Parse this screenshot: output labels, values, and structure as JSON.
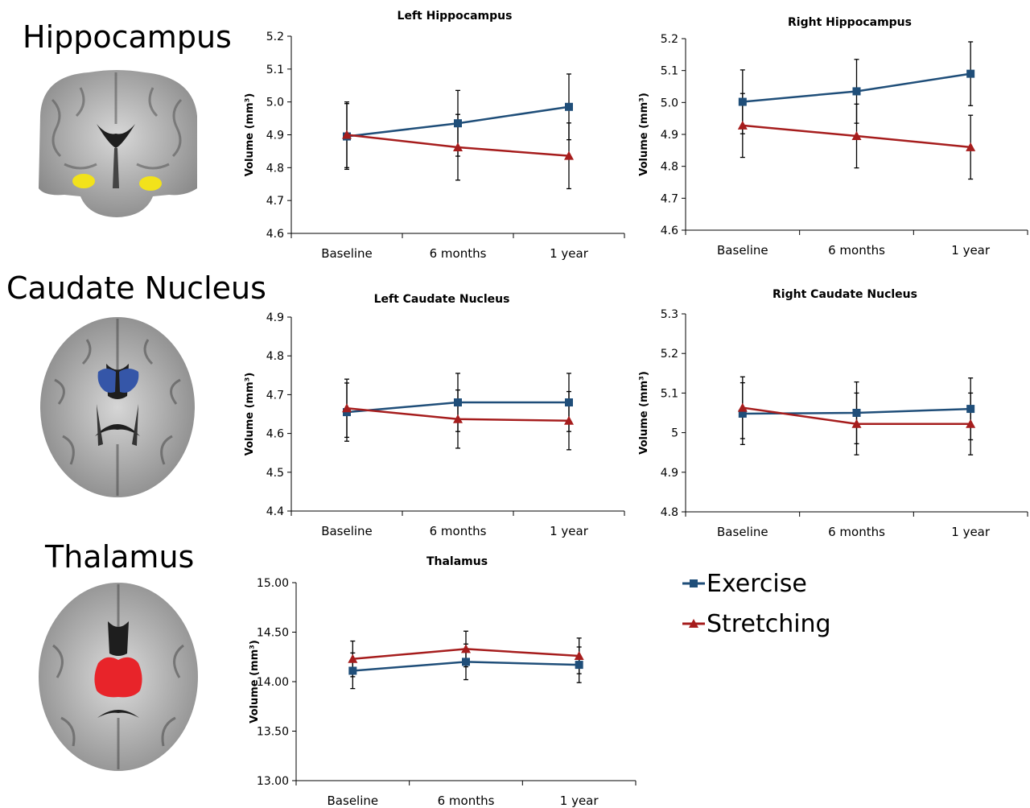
{
  "regions": {
    "hippocampus": "Hippocampus",
    "caudate": "Caudate Nucleus",
    "thalamus": "Thalamus"
  },
  "colors": {
    "exercise": "#1f4e79",
    "stretching": "#a61d1d",
    "hippocampus_highlight": "#f2e21b",
    "caudate_highlight": "#3556a8",
    "thalamus_highlight": "#e8242a"
  },
  "legend": {
    "exercise": "Exercise",
    "stretching": "Stretching"
  },
  "chart_data": [
    {
      "type": "line",
      "title": "Left Hippocampus",
      "ylabel": "Volume (mm³)",
      "categories": [
        "Baseline",
        "6 months",
        "1 year"
      ],
      "ylim": [
        4.6,
        5.2
      ],
      "yticks": [
        "4.6",
        "4.7",
        "4.8",
        "4.9",
        "5.0",
        "5.1",
        "5.2"
      ],
      "series": [
        {
          "name": "Exercise",
          "values": [
            4.895,
            4.935,
            4.985
          ],
          "error": [
            0.1,
            0.1,
            0.1
          ]
        },
        {
          "name": "Stretching",
          "values": [
            4.9,
            4.862,
            4.836
          ],
          "error": [
            0.1,
            0.1,
            0.1
          ]
        }
      ]
    },
    {
      "type": "line",
      "title": "Right Hippocampus",
      "ylabel": "Volume (mm³)",
      "categories": [
        "Baseline",
        "6 months",
        "1 year"
      ],
      "ylim": [
        4.6,
        5.2
      ],
      "yticks": [
        "4.6",
        "4.7",
        "4.8",
        "4.9",
        "5.0",
        "5.1",
        "5.2"
      ],
      "series": [
        {
          "name": "Exercise",
          "values": [
            5.002,
            5.035,
            5.09
          ],
          "error": [
            0.1,
            0.1,
            0.1
          ]
        },
        {
          "name": "Stretching",
          "values": [
            4.928,
            4.895,
            4.86
          ],
          "error": [
            0.1,
            0.1,
            0.1
          ]
        }
      ]
    },
    {
      "type": "line",
      "title": "Left Caudate Nucleus",
      "ylabel": "Volume (mm³)",
      "categories": [
        "Baseline",
        "6 months",
        "1 year"
      ],
      "ylim": [
        4.4,
        4.9
      ],
      "yticks": [
        "4.4",
        "4.5",
        "4.6",
        "4.7",
        "4.8",
        "4.9"
      ],
      "series": [
        {
          "name": "Exercise",
          "values": [
            4.655,
            4.68,
            4.68
          ],
          "error": [
            0.075,
            0.075,
            0.075
          ]
        },
        {
          "name": "Stretching",
          "values": [
            4.665,
            4.637,
            4.633
          ],
          "error": [
            0.075,
            0.075,
            0.075
          ]
        }
      ]
    },
    {
      "type": "line",
      "title": "Right Caudate Nucleus",
      "ylabel": "Volume (mm³)",
      "categories": [
        "Baseline",
        "6 months",
        "1 year"
      ],
      "ylim": [
        4.8,
        5.3
      ],
      "yticks": [
        "4.8",
        "4.9",
        "5",
        "5.1",
        "5.2",
        "5.3"
      ],
      "series": [
        {
          "name": "Exercise",
          "values": [
            5.048,
            5.05,
            5.06
          ],
          "error": [
            0.078,
            0.078,
            0.078
          ]
        },
        {
          "name": "Stretching",
          "values": [
            5.063,
            5.022,
            5.022
          ],
          "error": [
            0.078,
            0.078,
            0.078
          ]
        }
      ]
    },
    {
      "type": "line",
      "title": "Thalamus",
      "ylabel": "Volume (mm³)",
      "categories": [
        "Baseline",
        "6 months",
        "1 year"
      ],
      "ylim": [
        13.0,
        15.0
      ],
      "yticks": [
        "13.00",
        "13.50",
        "14.00",
        "14.50",
        "15.00"
      ],
      "series": [
        {
          "name": "Exercise",
          "values": [
            14.11,
            14.2,
            14.17
          ],
          "error": [
            0.18,
            0.18,
            0.18
          ]
        },
        {
          "name": "Stretching",
          "values": [
            14.23,
            14.33,
            14.26
          ],
          "error": [
            0.18,
            0.18,
            0.18
          ]
        }
      ]
    }
  ]
}
